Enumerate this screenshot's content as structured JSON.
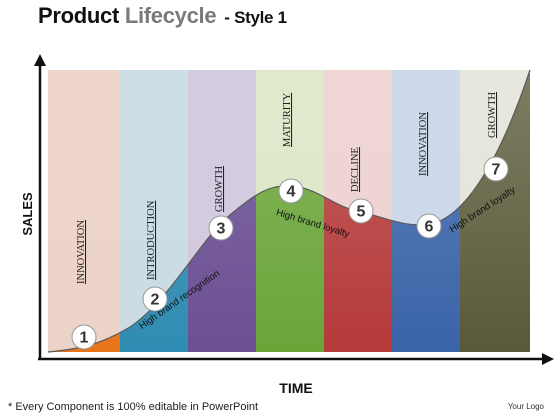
{
  "header": {
    "title_bold": "Product",
    "title_light": "Lifecycle",
    "title_style": "- Style 1"
  },
  "axes": {
    "y_label": "SALES",
    "x_label": "TIME"
  },
  "stages": [
    {
      "label": "INNOVATION",
      "top": "#edd3c5",
      "bottom": "#e9751a"
    },
    {
      "label": "INTRODUCTION",
      "top": "#c9dbe6",
      "bottom": "#2f8cb2"
    },
    {
      "label": "GROWTH",
      "top": "#d2c8df",
      "bottom": "#6b4f94"
    },
    {
      "label": "MATURITY",
      "top": "#dde8c8",
      "bottom": "#6aa53a"
    },
    {
      "label": "DECLINE",
      "top": "#efd1d1",
      "bottom": "#b53a3a"
    },
    {
      "label": "INNOVATION",
      "top": "#cad6ea",
      "bottom": "#3a64a8"
    },
    {
      "label": "GROWTH",
      "top": "#e6e6da",
      "bottom": "#5a5a3a"
    }
  ],
  "markers": [
    "1",
    "2",
    "3",
    "4",
    "5",
    "6",
    "7"
  ],
  "curve_labels": [
    "High brand recognition",
    "High brand loyalty",
    "High brand loyalty"
  ],
  "footer": {
    "note": "* Every  Component is 100%  editable in PowerPoint",
    "logo": "Your Logo"
  }
}
